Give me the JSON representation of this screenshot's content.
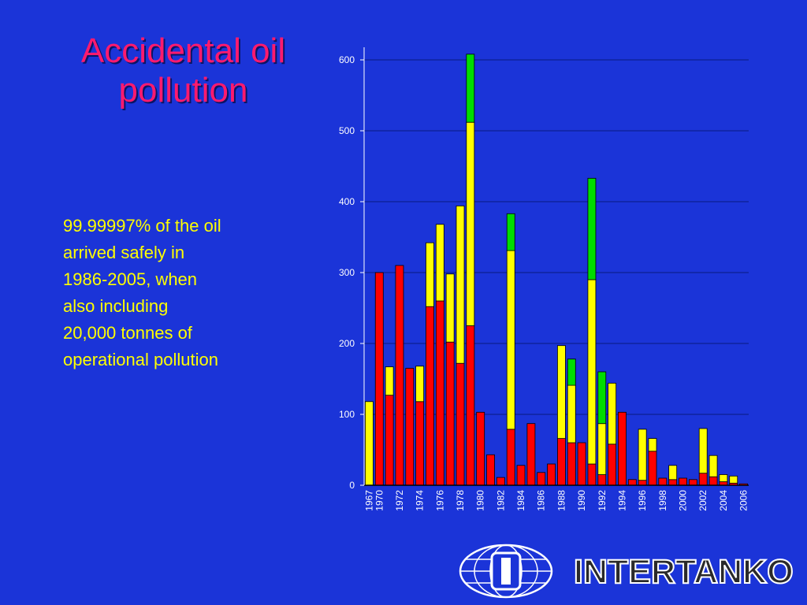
{
  "slide": {
    "title_line1": "Accidental oil",
    "title_line2": "pollution",
    "note_lines": [
      "99.99997% of the oil",
      "arrived safely in",
      "1986-2005, when",
      "also including",
      "20,000 tonnes of",
      "operational pollution"
    ],
    "logo_text": "INTERTANKO"
  },
  "colors": {
    "background": "#1b34d8",
    "title": "#ff1a6e",
    "note_text": "#ffff00",
    "series_red": "#ff0000",
    "series_yellow": "#ffff00",
    "series_green": "#00dd00"
  },
  "chart_data": {
    "type": "bar",
    "stacked": true,
    "grid": "horizontal",
    "ylim": [
      0,
      600
    ],
    "yticks": [
      "0",
      "100",
      "200",
      "300",
      "400",
      "500",
      "600"
    ],
    "categories": [
      1967,
      1970,
      1971,
      1972,
      1973,
      1974,
      1975,
      1976,
      1977,
      1978,
      1979,
      1980,
      1981,
      1982,
      1983,
      1984,
      1985,
      1986,
      1987,
      1988,
      1989,
      1990,
      1991,
      1992,
      1993,
      1994,
      1995,
      1996,
      1997,
      1998,
      1999,
      2000,
      2001,
      2002,
      2003,
      2004,
      2005,
      2006
    ],
    "xtick_labels": [
      "1967",
      "1970",
      "1972",
      "1974",
      "1976",
      "1978",
      "1980",
      "1982",
      "1984",
      "1986",
      "1988",
      "1990",
      "1992",
      "1994",
      "1996",
      "1998",
      "2000",
      "2002",
      "2004",
      "2006"
    ],
    "series": [
      {
        "color": "#ff0000",
        "values": [
          0,
          300,
          127,
          310,
          165,
          118,
          252,
          260,
          202,
          172,
          225,
          103,
          43,
          11,
          79,
          28,
          87,
          18,
          30,
          66,
          60,
          60,
          30,
          15,
          58,
          103,
          8,
          7,
          48,
          10,
          8,
          10,
          8,
          17,
          12,
          5,
          3,
          2
        ]
      },
      {
        "color": "#ffff00",
        "values": [
          118,
          0,
          40,
          0,
          0,
          50,
          90,
          108,
          96,
          222,
          287,
          0,
          0,
          0,
          252,
          0,
          0,
          0,
          0,
          131,
          81,
          0,
          260,
          72,
          86,
          0,
          0,
          72,
          18,
          0,
          20,
          0,
          0,
          63,
          30,
          10,
          10,
          0
        ]
      },
      {
        "color": "#00dd00",
        "values": [
          0,
          0,
          0,
          0,
          0,
          0,
          0,
          0,
          0,
          0,
          96,
          0,
          0,
          0,
          52,
          0,
          0,
          0,
          0,
          0,
          37,
          0,
          143,
          73,
          0,
          0,
          0,
          0,
          0,
          0,
          0,
          0,
          0,
          0,
          0,
          0,
          0,
          0
        ]
      }
    ]
  }
}
